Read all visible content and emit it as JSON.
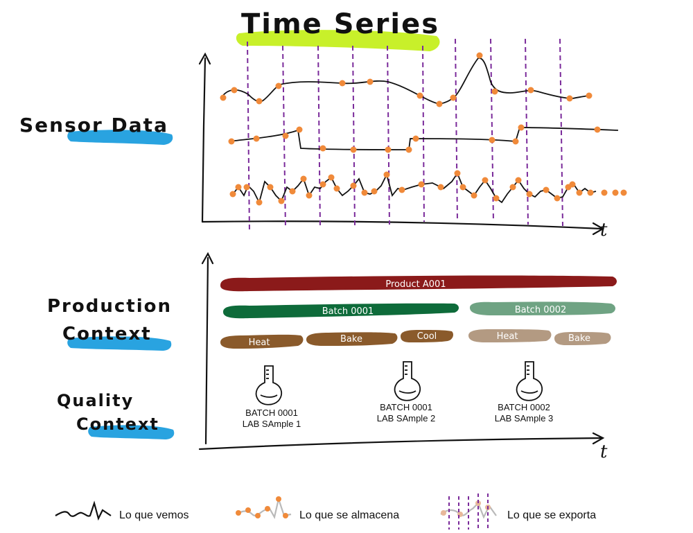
{
  "title": "Time Series",
  "sections": {
    "sensor_label": "Sensor Data",
    "production_label_line1": "Production",
    "production_label_line2": "Context",
    "quality_label_line1": "Quality",
    "quality_label_line2": "Context"
  },
  "axes": {
    "top_t": "t",
    "bottom_t": "t"
  },
  "production": {
    "product": "Product A001",
    "batches": [
      "Batch 0001",
      "Batch 0002"
    ],
    "phases": [
      "Heat",
      "Bake",
      "Cool",
      "Heat",
      "Bake"
    ]
  },
  "quality": {
    "samples": [
      {
        "line1": "BATCH 0001",
        "line2": "LAB SAmple 1"
      },
      {
        "line1": "BATCH 0001",
        "line2": "LAB SAmple 2"
      },
      {
        "line1": "BATCH 0002",
        "line2": "LAB SAmple 3"
      }
    ]
  },
  "legend": {
    "seen": "Lo que vemos",
    "stored": "Lo que se almacena",
    "exported": "Lo que se exporta"
  },
  "colors": {
    "highlight_green": "#c8f02a",
    "highlight_blue": "#29a3e0",
    "point_orange": "#f08a3a",
    "export_purple": "#7a2a9a",
    "product_red": "#8b1a1a",
    "batch1_green": "#0e6b3a",
    "batch2_green": "#6fa383",
    "phase_brown": "#8a5a2b",
    "phase_light_brown": "#b39a82"
  }
}
